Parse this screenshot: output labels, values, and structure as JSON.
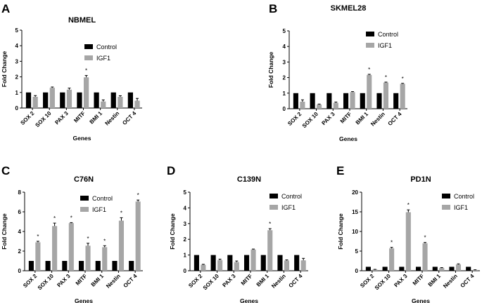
{
  "chart_data": [
    {
      "type": "bar",
      "panel": "A",
      "title": "NBMEL",
      "xlabel": "Genes",
      "ylabel": "Fold Change",
      "categories": [
        "SOX 2",
        "SOX 10",
        "PAX 3",
        "MITF",
        "BMI 1",
        "Nestin",
        "OCT 4"
      ],
      "ylim": [
        0,
        5
      ],
      "yticks": [
        0,
        1,
        2,
        3,
        4,
        5
      ],
      "legend": "top-right",
      "series": [
        {
          "name": "Control",
          "color": "#000000",
          "values": [
            1,
            1,
            1,
            1,
            1,
            1,
            1
          ],
          "errors": [
            0,
            0,
            0,
            0,
            0,
            0,
            0
          ]
        },
        {
          "name": "IGF1",
          "color": "#a6a6a6",
          "values": [
            0.72,
            1.3,
            1.18,
            1.97,
            0.42,
            0.72,
            0.47
          ],
          "errors": [
            0.08,
            0.05,
            0.1,
            0.12,
            0.1,
            0.07,
            0.15
          ]
        }
      ],
      "significant": [
        false,
        false,
        false,
        true,
        false,
        false,
        false
      ]
    },
    {
      "type": "bar",
      "panel": "B",
      "title": "SKMEL28",
      "xlabel": "Genes",
      "ylabel": "Fold Change",
      "categories": [
        "SOX 2",
        "SOX 10",
        "PAX 3",
        "MITF",
        "BMI 1",
        "Nestin",
        "OCT 4"
      ],
      "ylim": [
        0,
        5
      ],
      "yticks": [
        0,
        1,
        2,
        3,
        4,
        5
      ],
      "legend": "top-right",
      "series": [
        {
          "name": "Control",
          "color": "#000000",
          "values": [
            1,
            1,
            1,
            1,
            1,
            1,
            1
          ],
          "errors": [
            0,
            0,
            0,
            0,
            0,
            0,
            0
          ]
        },
        {
          "name": "IGF1",
          "color": "#a6a6a6",
          "values": [
            0.45,
            0.27,
            0.38,
            1.07,
            2.17,
            1.68,
            1.6
          ],
          "errors": [
            0.12,
            0.03,
            0.05,
            0.03,
            0.04,
            0.03,
            0.03
          ]
        }
      ],
      "significant": [
        false,
        false,
        false,
        false,
        true,
        true,
        true
      ]
    },
    {
      "type": "bar",
      "panel": "C",
      "title": "C76N",
      "xlabel": "Genes",
      "ylabel": "Fold Change",
      "categories": [
        "SOX 2",
        "SOX 10",
        "PAX 3",
        "MITF",
        "BMI 1",
        "Nestin",
        "OCT 4"
      ],
      "ylim": [
        0,
        8
      ],
      "yticks": [
        0,
        2,
        4,
        6,
        8
      ],
      "legend": "top-right",
      "series": [
        {
          "name": "Control",
          "color": "#000000",
          "values": [
            1,
            1,
            1,
            1,
            1,
            1,
            1
          ],
          "errors": [
            0,
            0,
            0,
            0,
            0,
            0,
            0
          ]
        },
        {
          "name": "IGF1",
          "color": "#a6a6a6",
          "values": [
            2.9,
            4.55,
            4.85,
            2.55,
            2.4,
            5.1,
            7.05
          ],
          "errors": [
            0.1,
            0.3,
            0.05,
            0.25,
            0.15,
            0.3,
            0.15
          ]
        }
      ],
      "significant": [
        true,
        true,
        true,
        true,
        true,
        true,
        true
      ]
    },
    {
      "type": "bar",
      "panel": "D",
      "title": "C139N",
      "xlabel": "Genes",
      "ylabel": "Fold Change",
      "categories": [
        "SOX 2",
        "SOX 10",
        "PAX 3",
        "MITF",
        "BMI 1",
        "Nestin",
        "OCT 4"
      ],
      "ylim": [
        0,
        5
      ],
      "yticks": [
        0,
        1,
        2,
        3,
        4,
        5
      ],
      "legend": "top-right",
      "series": [
        {
          "name": "Control",
          "color": "#000000",
          "values": [
            1,
            1,
            1,
            1,
            1,
            1,
            1
          ],
          "errors": [
            0,
            0,
            0,
            0,
            0,
            0,
            0
          ]
        },
        {
          "name": "IGF1",
          "color": "#a6a6a6",
          "values": [
            0.38,
            0.68,
            0.55,
            1.35,
            2.58,
            0.65,
            0.66
          ],
          "errors": [
            0.03,
            0.06,
            0.07,
            0.03,
            0.1,
            0.04,
            0.13
          ]
        }
      ],
      "significant": [
        false,
        false,
        false,
        false,
        true,
        false,
        false
      ]
    },
    {
      "type": "bar",
      "panel": "E",
      "title": "PD1N",
      "xlabel": "Genes",
      "ylabel": "Fold Change",
      "categories": [
        "SOX 2",
        "SOX 10",
        "PAX 3",
        "MITF",
        "BMI 1",
        "Nestin",
        "OCT 4"
      ],
      "ylim": [
        0,
        20
      ],
      "yticks": [
        0,
        5,
        10,
        15,
        20
      ],
      "legend": "top-right",
      "series": [
        {
          "name": "Control",
          "color": "#000000",
          "values": [
            1,
            1,
            1,
            1,
            1,
            1,
            1
          ],
          "errors": [
            0,
            0,
            0,
            0,
            0,
            0,
            0
          ]
        },
        {
          "name": "IGF1",
          "color": "#a6a6a6",
          "values": [
            0.3,
            5.7,
            14.9,
            7.0,
            0.7,
            1.6,
            0.2
          ],
          "errors": [
            0.05,
            0.25,
            0.6,
            0.2,
            0.1,
            0.15,
            0.05
          ]
        }
      ],
      "significant": [
        false,
        true,
        true,
        true,
        false,
        false,
        false
      ]
    }
  ]
}
